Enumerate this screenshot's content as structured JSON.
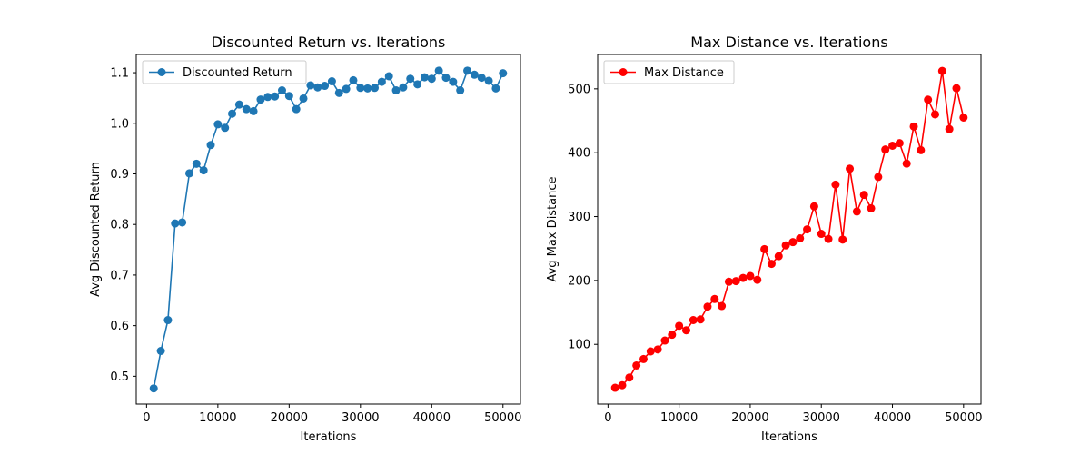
{
  "chart_data": [
    {
      "type": "line",
      "title": "Discounted Return vs. Iterations",
      "xlabel": "Iterations",
      "ylabel": "Avg Discounted Return",
      "xlim": [
        -1450,
        52450
      ],
      "ylim": [
        0.445,
        1.136
      ],
      "xticks": [
        0,
        10000,
        20000,
        30000,
        40000,
        50000
      ],
      "yticks": [
        0.5,
        0.6,
        0.7,
        0.8,
        0.9,
        1.0,
        1.1
      ],
      "ytick_format": "1dp",
      "legend_position": "upper left",
      "grid": false,
      "series": [
        {
          "name": "Discounted Return",
          "color": "#1f77b4",
          "marker": "circle",
          "x": [
            1000,
            2000,
            3000,
            4000,
            5000,
            6000,
            7000,
            8000,
            9000,
            10000,
            11000,
            12000,
            13000,
            14000,
            15000,
            16000,
            17000,
            18000,
            19000,
            20000,
            21000,
            22000,
            23000,
            24000,
            25000,
            26000,
            27000,
            28000,
            29000,
            30000,
            31000,
            32000,
            33000,
            34000,
            35000,
            36000,
            37000,
            38000,
            39000,
            40000,
            41000,
            42000,
            43000,
            44000,
            45000,
            46000,
            47000,
            48000,
            49000,
            50000
          ],
          "y": [
            0.476,
            0.55,
            0.611,
            0.802,
            0.804,
            0.901,
            0.92,
            0.907,
            0.957,
            0.998,
            0.991,
            1.019,
            1.037,
            1.028,
            1.024,
            1.047,
            1.052,
            1.053,
            1.065,
            1.054,
            1.028,
            1.049,
            1.075,
            1.071,
            1.074,
            1.083,
            1.06,
            1.068,
            1.085,
            1.07,
            1.069,
            1.07,
            1.082,
            1.093,
            1.065,
            1.071,
            1.088,
            1.077,
            1.091,
            1.088,
            1.104,
            1.09,
            1.082,
            1.065,
            1.104,
            1.096,
            1.09,
            1.084,
            1.069,
            1.099
          ]
        }
      ]
    },
    {
      "type": "line",
      "title": "Max Distance vs. Iterations",
      "xlabel": "Iterations",
      "ylabel": "Avg Max Distance",
      "xlim": [
        -1450,
        52450
      ],
      "ylim": [
        6.5,
        553.8
      ],
      "xticks": [
        0,
        10000,
        20000,
        30000,
        40000,
        50000
      ],
      "yticks": [
        100,
        200,
        300,
        400,
        500
      ],
      "ytick_format": "int",
      "legend_position": "upper left",
      "grid": false,
      "series": [
        {
          "name": "Max Distance",
          "color": "#ff0000",
          "marker": "circle",
          "x": [
            1000,
            2000,
            3000,
            4000,
            5000,
            6000,
            7000,
            8000,
            9000,
            10000,
            11000,
            12000,
            13000,
            14000,
            15000,
            16000,
            17000,
            18000,
            19000,
            20000,
            21000,
            22000,
            23000,
            24000,
            25000,
            26000,
            27000,
            28000,
            29000,
            30000,
            31000,
            32000,
            33000,
            34000,
            35000,
            36000,
            37000,
            38000,
            39000,
            40000,
            41000,
            42000,
            43000,
            44000,
            45000,
            46000,
            47000,
            48000,
            49000,
            50000
          ],
          "y": [
            32,
            36,
            48,
            67,
            77,
            89,
            92,
            106,
            115,
            129,
            122,
            138,
            139,
            159,
            171,
            160,
            198,
            199,
            204,
            207,
            201,
            249,
            226,
            238,
            255,
            260,
            266,
            280,
            316,
            273,
            265,
            350,
            264,
            375,
            308,
            334,
            313,
            362,
            405,
            411,
            415,
            383,
            441,
            404,
            483,
            460,
            528,
            437,
            501,
            455
          ]
        }
      ]
    }
  ]
}
